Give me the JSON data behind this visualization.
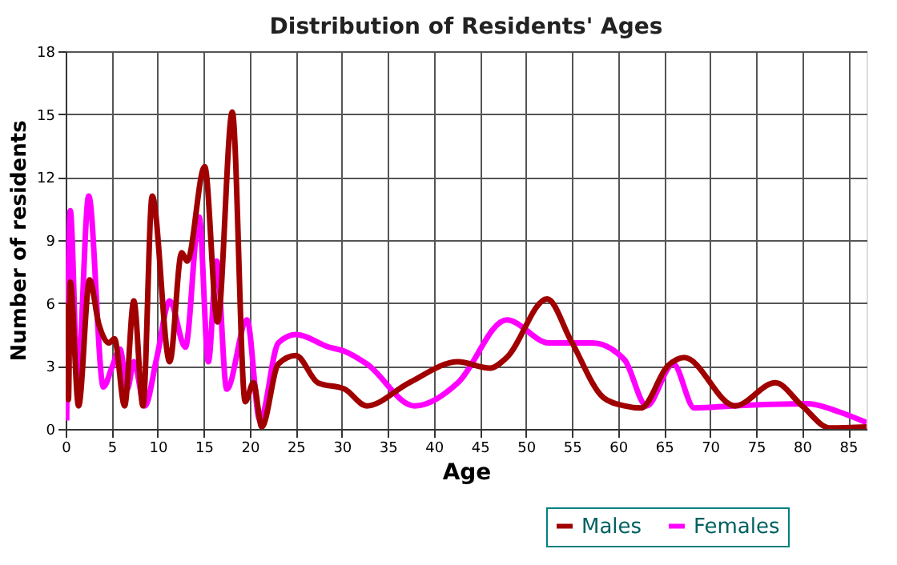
{
  "chart_data": {
    "type": "line",
    "title": "Distribution of Residents' Ages",
    "xlabel": "Age",
    "ylabel": "Number of residents",
    "xlim": [
      0,
      87
    ],
    "ylim": [
      0,
      18
    ],
    "xticks": [
      0,
      5,
      10,
      15,
      20,
      25,
      30,
      35,
      40,
      45,
      50,
      55,
      60,
      65,
      70,
      75,
      80,
      85
    ],
    "yticks": [
      0,
      3,
      6,
      9,
      12,
      15,
      18
    ],
    "grid": true,
    "legend": "bottom right",
    "series": [
      {
        "name": "Males",
        "color": "#a00000",
        "x": [
          0.1,
          0.3,
          0.5,
          1.4,
          2.6,
          3.6,
          4.7,
          5.3,
          6.4,
          7.4,
          8.4,
          9.4,
          11.3,
          12.6,
          13.2,
          15.1,
          16.5,
          18.1,
          19.5,
          20.4,
          21.3,
          23.1,
          25,
          27.4,
          30.3,
          32.7,
          37.3,
          42.6,
          46.1,
          47.9,
          52.3,
          54.9,
          58.4,
          60.7,
          62.5,
          65.4,
          67.2,
          72.7,
          77.1,
          80,
          83,
          87
        ],
        "values": [
          6.0,
          1.4,
          7.0,
          1.1,
          7.1,
          5.0,
          4.1,
          4.3,
          1.1,
          6.1,
          1.1,
          11.1,
          3.2,
          8.4,
          8.0,
          12.5,
          5.1,
          15.1,
          1.3,
          2.2,
          0.1,
          3.1,
          3.5,
          2.2,
          1.9,
          1.1,
          2.2,
          3.2,
          2.9,
          3.4,
          6.2,
          4.2,
          1.5,
          1.1,
          1.0,
          3.0,
          3.4,
          1.1,
          2.2,
          1.1,
          0.05,
          0.1
        ]
      },
      {
        "name": "Females",
        "color": "#ff00ff",
        "x": [
          0.1,
          0.5,
          1.3,
          2.5,
          4.1,
          5,
          5.9,
          6.7,
          7.4,
          8.6,
          9.9,
          11.3,
          13,
          14.5,
          15.5,
          16.4,
          17.5,
          19.7,
          21.1,
          23.1,
          25,
          28.6,
          30.3,
          32.7,
          37.9,
          42.6,
          47.9,
          52.5,
          57.2,
          60.7,
          63.1,
          66,
          68.3,
          72.4,
          80.6,
          84.1,
          87
        ],
        "values": [
          0.4,
          10.4,
          2.4,
          11.1,
          2.0,
          2.9,
          3.8,
          1.9,
          3.2,
          1.1,
          3.4,
          6.1,
          3.9,
          10.1,
          3.2,
          8.0,
          1.9,
          5.2,
          0.4,
          4.1,
          4.5,
          3.9,
          3.7,
          3.1,
          1.1,
          2.2,
          5.2,
          4.1,
          4.1,
          3.3,
          1.1,
          3.1,
          1.0,
          1.1,
          1.2,
          0.8,
          0.3
        ]
      }
    ]
  }
}
